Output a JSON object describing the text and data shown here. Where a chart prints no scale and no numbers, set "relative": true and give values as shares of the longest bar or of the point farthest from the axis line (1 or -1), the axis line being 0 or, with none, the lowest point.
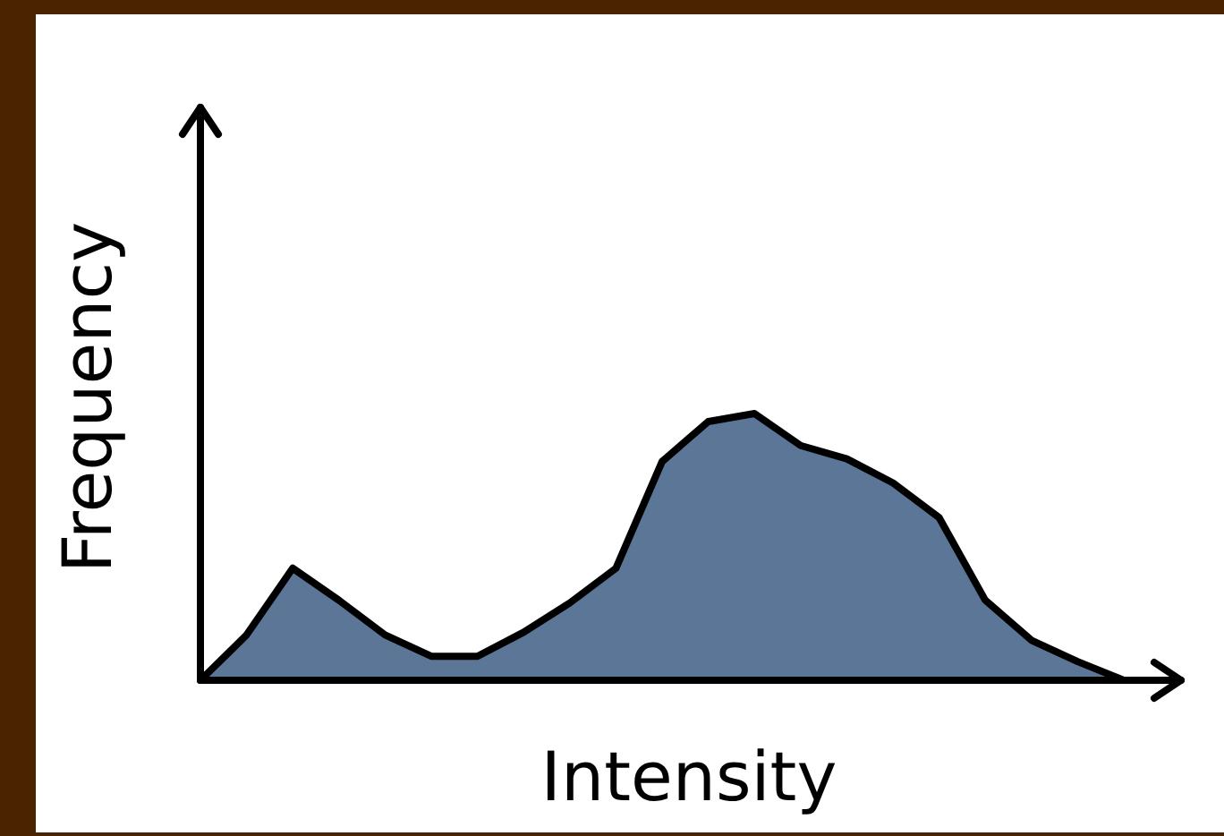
{
  "chart_data": {
    "type": "area",
    "relative": true,
    "xlabel": "Intensity",
    "ylabel": "Frequency",
    "categories": [
      null,
      null,
      null,
      null,
      null,
      null,
      null,
      null,
      null,
      null,
      null,
      null,
      null,
      null,
      null,
      null,
      null,
      null,
      null,
      null,
      null
    ],
    "series": [
      {
        "color": "#5b7696",
        "values": [
          0,
          0.17,
          0.42,
          0.3,
          0.17,
          0.09,
          0.09,
          0.18,
          0.29,
          0.42,
          0.82,
          0.97,
          1,
          0.88,
          0.83,
          0.74,
          0.61,
          0.3,
          0.15,
          0.07,
          0
        ]
      }
    ]
  }
}
